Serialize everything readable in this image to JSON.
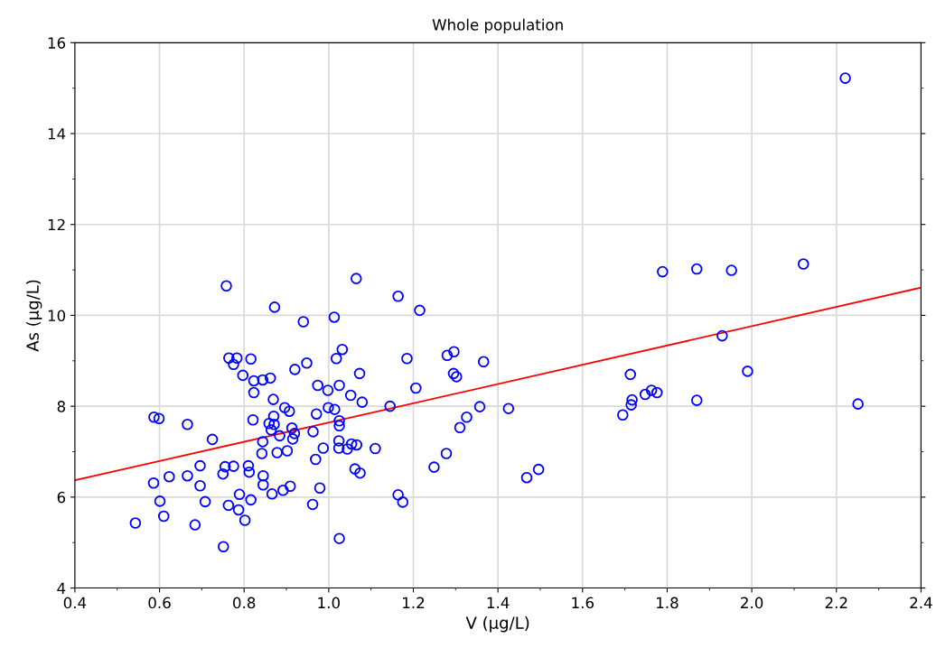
{
  "chart_data": {
    "type": "scatter",
    "title": "Whole population",
    "xlabel": "V (µg/L)",
    "ylabel": "As (µg/L)",
    "xlim": [
      0.4,
      2.4
    ],
    "xticks": [
      {
        "value": 0.4,
        "label": "0.4"
      },
      {
        "value": 0.6,
        "label": "0.6"
      },
      {
        "value": 0.8,
        "label": "0.8"
      },
      {
        "value": 1.0,
        "label": "1.0"
      },
      {
        "value": 1.2,
        "label": "1.2"
      },
      {
        "value": 1.4,
        "label": "1.4"
      },
      {
        "value": 1.6,
        "label": "1.6"
      },
      {
        "value": 1.8,
        "label": "1.8"
      },
      {
        "value": 2.0,
        "label": "2.0"
      },
      {
        "value": 2.2,
        "label": "2.2"
      },
      {
        "value": 2.4,
        "label": "2.4"
      }
    ],
    "ylim": [
      4,
      16
    ],
    "yticks": [
      4,
      6,
      8,
      10,
      12,
      14,
      16
    ],
    "grid": true,
    "marker": "circle",
    "legend": false,
    "series": [
      {
        "color": "#0000ff",
        "x": [
          0.758,
          0.872,
          0.764,
          0.783,
          0.775,
          0.816,
          0.797,
          0.823,
          0.844,
          0.862,
          0.823,
          0.869,
          0.896,
          0.587,
          0.599,
          0.666,
          0.821,
          0.87,
          0.859,
          0.871,
          0.864,
          0.884,
          0.725,
          0.844,
          0.842,
          0.878,
          0.902,
          0.696,
          0.755,
          0.775,
          0.81,
          0.812,
          0.75,
          0.586,
          0.623,
          0.666,
          0.696,
          0.845,
          0.845,
          0.866,
          0.892,
          0.789,
          0.816,
          0.601,
          0.708,
          0.763,
          0.787,
          0.61,
          0.543,
          0.684,
          0.802,
          0.751,
          1.065,
          1.164,
          1.215,
          0.94,
          1.013,
          1.032,
          1.018,
          0.948,
          0.92,
          1.073,
          1.185,
          1.28,
          0.974,
          0.998,
          1.025,
          1.052,
          1.079,
          1.206,
          0.907,
          0.971,
          0.999,
          1.014,
          1.145,
          1.025,
          1.025,
          0.913,
          0.919,
          0.915,
          0.963,
          1.024,
          1.024,
          1.044,
          1.054,
          1.066,
          1.11,
          0.987,
          0.969,
          1.062,
          1.074,
          1.278,
          1.249,
          0.909,
          0.979,
          0.962,
          1.164,
          1.175,
          1.025,
          1.296,
          1.366,
          1.295,
          1.302,
          1.357,
          1.425,
          1.326,
          1.31,
          1.468,
          1.496,
          1.789,
          1.87,
          1.952,
          2.122,
          1.93,
          1.713,
          1.99,
          1.763,
          1.776,
          1.748,
          1.717,
          1.715,
          1.695,
          1.87,
          2.251,
          2.221
        ],
        "values": [
          10.65,
          10.18,
          9.06,
          9.06,
          8.92,
          9.04,
          8.68,
          8.56,
          8.58,
          8.62,
          8.3,
          8.15,
          7.97,
          7.76,
          7.73,
          7.6,
          7.7,
          7.78,
          7.62,
          7.6,
          7.48,
          7.35,
          7.27,
          7.22,
          6.96,
          6.98,
          7.02,
          6.69,
          6.67,
          6.68,
          6.69,
          6.55,
          6.51,
          6.31,
          6.45,
          6.47,
          6.25,
          6.47,
          6.27,
          6.07,
          6.15,
          6.06,
          5.94,
          5.91,
          5.9,
          5.82,
          5.72,
          5.58,
          5.43,
          5.39,
          5.49,
          4.91,
          10.81,
          10.42,
          10.11,
          9.86,
          9.96,
          9.25,
          9.05,
          8.95,
          8.81,
          8.72,
          9.05,
          9.12,
          8.46,
          8.35,
          8.46,
          8.24,
          8.09,
          8.4,
          7.89,
          7.83,
          7.97,
          7.93,
          8.0,
          7.68,
          7.57,
          7.52,
          7.4,
          7.28,
          7.44,
          7.24,
          7.08,
          7.06,
          7.17,
          7.15,
          7.07,
          7.08,
          6.83,
          6.62,
          6.53,
          6.96,
          6.66,
          6.24,
          6.2,
          5.84,
          6.05,
          5.89,
          5.09,
          9.2,
          8.98,
          8.72,
          8.65,
          7.99,
          7.95,
          7.76,
          7.53,
          6.43,
          6.61,
          10.96,
          11.02,
          10.99,
          11.13,
          9.55,
          8.7,
          8.77,
          8.35,
          8.3,
          8.26,
          8.14,
          8.03,
          7.81,
          8.13,
          8.05,
          15.22
        ]
      },
      {
        "type": "line",
        "color": "#ff0000",
        "marker": "none",
        "line_style": "solid",
        "x": [
          0.4,
          2.4
        ],
        "values": [
          6.37,
          10.61
        ]
      }
    ]
  }
}
